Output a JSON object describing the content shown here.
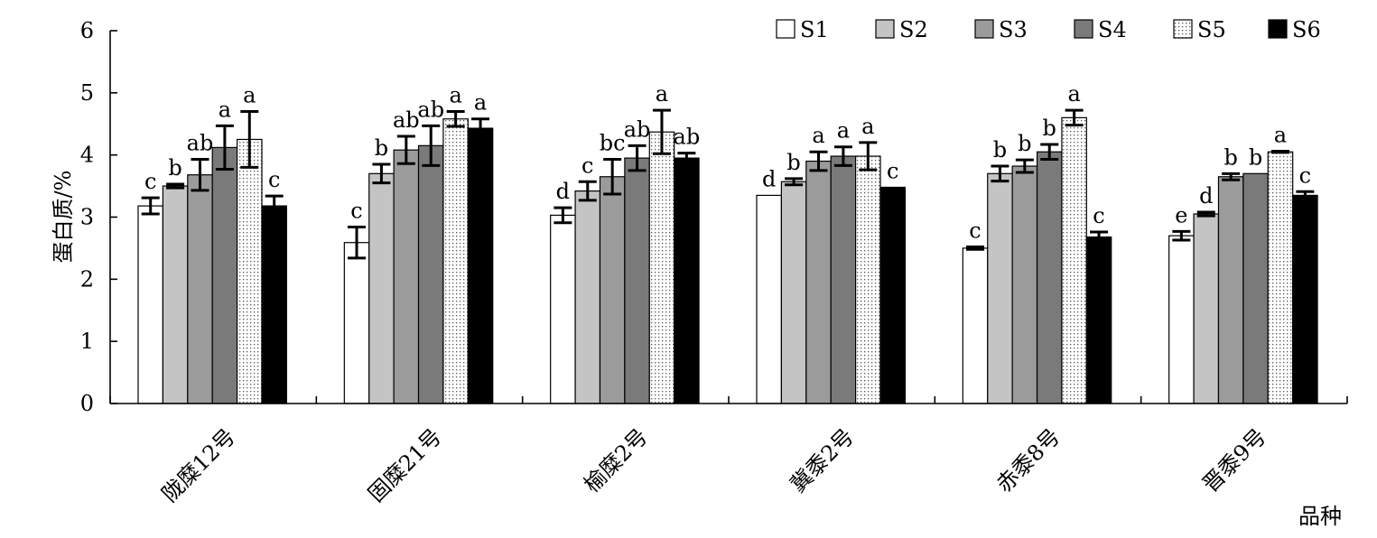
{
  "chart_data": {
    "type": "bar",
    "title": "",
    "ylabel": "蛋白质/%",
    "xlabel": "品种",
    "ylim": [
      0,
      6
    ],
    "yticks": [
      0,
      1,
      2,
      3,
      4,
      5,
      6
    ],
    "yticks_labels": [
      "0",
      "1",
      "2",
      "3",
      "4",
      "5",
      "6"
    ],
    "categories": [
      "陇糜12号",
      "固糜21号",
      "榆糜2号",
      "冀黍2号",
      "赤黍8号",
      "晋黍9号"
    ],
    "legend_position": "top-right",
    "grid": false,
    "series": [
      {
        "name": "S1",
        "fill": "#ffffff",
        "pattern": "none",
        "values": [
          3.18,
          2.59,
          3.03,
          3.35,
          2.5,
          2.7
        ],
        "errors": [
          0.13,
          0.25,
          0.12,
          0.0,
          0.02,
          0.07
        ],
        "letters": [
          "c",
          "c",
          "d",
          "d",
          "c",
          "e"
        ]
      },
      {
        "name": "S2",
        "fill": "#c4c4c4",
        "pattern": "none",
        "values": [
          3.5,
          3.7,
          3.42,
          3.57,
          3.7,
          3.05
        ],
        "errors": [
          0.03,
          0.15,
          0.15,
          0.05,
          0.12,
          0.03
        ],
        "letters": [
          "b",
          "b",
          "c",
          "b",
          "b",
          "d"
        ]
      },
      {
        "name": "S3",
        "fill": "#9b9b9b",
        "pattern": "none",
        "values": [
          3.68,
          4.08,
          3.65,
          3.9,
          3.82,
          3.65
        ],
        "errors": [
          0.25,
          0.22,
          0.28,
          0.15,
          0.1,
          0.05
        ],
        "letters": [
          "ab",
          "ab",
          "bc",
          "a",
          "b",
          "b"
        ]
      },
      {
        "name": "S4",
        "fill": "#7a7a7a",
        "pattern": "none",
        "values": [
          4.12,
          4.15,
          3.95,
          3.98,
          4.05,
          3.7
        ],
        "errors": [
          0.35,
          0.32,
          0.2,
          0.15,
          0.12,
          0.0
        ],
        "letters": [
          "a",
          "ab",
          "ab",
          "a",
          "b",
          "b"
        ]
      },
      {
        "name": "S5",
        "fill": "#ffffff",
        "pattern": "dots",
        "values": [
          4.25,
          4.58,
          4.37,
          3.98,
          4.6,
          4.05
        ],
        "errors": [
          0.45,
          0.12,
          0.35,
          0.22,
          0.12,
          0.01
        ],
        "letters": [
          "a",
          "a",
          "a",
          "a",
          "a",
          "a"
        ]
      },
      {
        "name": "S6",
        "fill": "#000000",
        "pattern": "none",
        "values": [
          3.18,
          4.43,
          3.95,
          3.48,
          2.68,
          3.35
        ],
        "errors": [
          0.16,
          0.15,
          0.08,
          0.0,
          0.08,
          0.06
        ],
        "letters": [
          "c",
          "a",
          "ab",
          "c",
          "c",
          "c"
        ]
      }
    ]
  }
}
